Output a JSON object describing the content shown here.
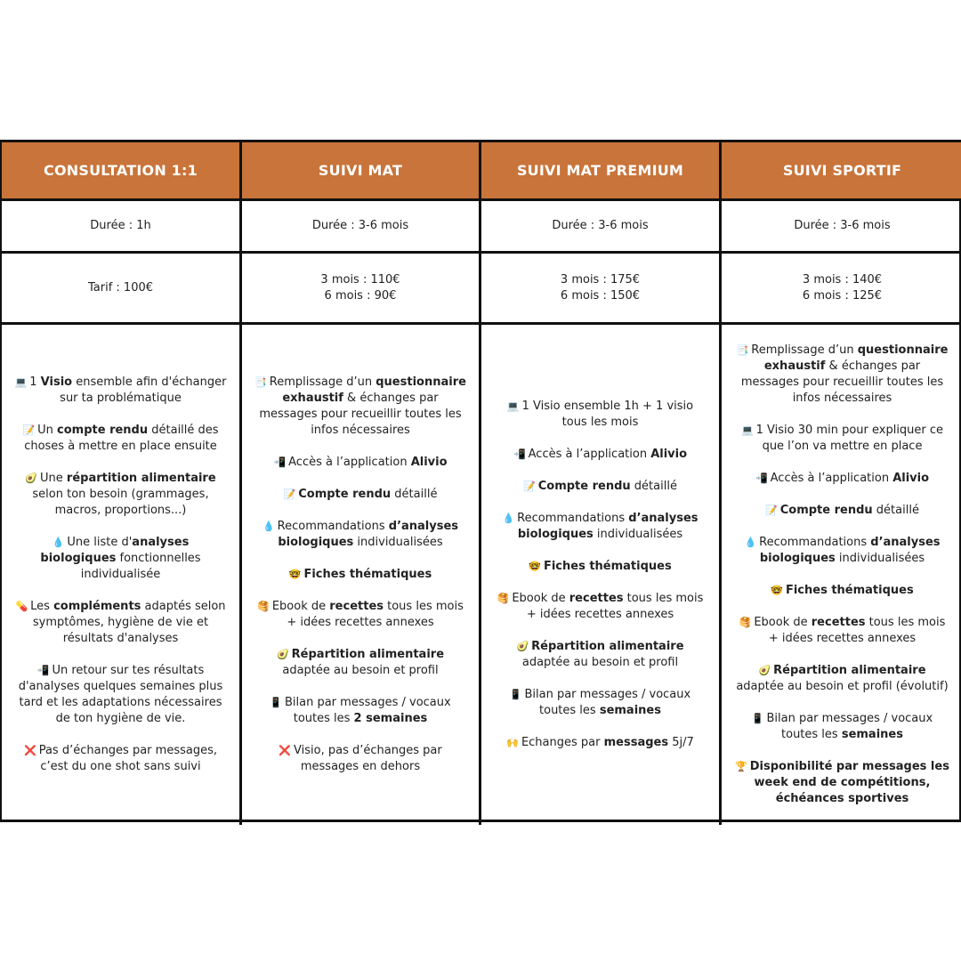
{
  "headers": [
    "CONSULTATION 1:1",
    "SUIVI MAT",
    "SUIVI MAT PREMIUM",
    "SUIVI SPORTIF"
  ],
  "durations": [
    "Durée : 1h",
    "Durée : 3-6 mois",
    "Durée : 3-6 mois",
    "Durée : 3-6 mois"
  ],
  "prices": [
    [
      "Tarif : 100€"
    ],
    [
      "3 mois : 110€",
      "6 mois : 90€"
    ],
    [
      "3 mois : 175€",
      "6 mois : 150€"
    ],
    [
      "3 mois : 140€",
      "6 mois : 125€"
    ]
  ],
  "features": [
    [
      {
        "icon": "laptop-icon",
        "glyph": "💻",
        "parts": [
          [
            "1 ",
            false
          ],
          [
            "Visio",
            true
          ],
          [
            " ensemble afin d'échanger sur ta problématique",
            false
          ]
        ]
      },
      {
        "icon": "memo-icon",
        "glyph": "📝",
        "parts": [
          [
            "Un ",
            false
          ],
          [
            "compte rendu",
            true
          ],
          [
            " détaillé des choses à mettre en place ensuite",
            false
          ]
        ]
      },
      {
        "icon": "avocado-icon",
        "glyph": "🥑",
        "parts": [
          [
            "Une ",
            false
          ],
          [
            "répartition alimentaire",
            true
          ],
          [
            " selon ton besoin (grammages, macros, proportions...)",
            false
          ]
        ]
      },
      {
        "icon": "blood-drop-icon",
        "glyph": "💧",
        "parts": [
          [
            "Une liste d'",
            false
          ],
          [
            "analyses biologiques",
            true
          ],
          [
            " fonctionnelles individualisée",
            false
          ]
        ]
      },
      {
        "icon": "pill-icon",
        "glyph": "💊",
        "parts": [
          [
            "Les ",
            false
          ],
          [
            "compléments",
            true
          ],
          [
            " adaptés selon symptômes, hygiène de vie et résultats d'analyses",
            false
          ]
        ]
      },
      {
        "icon": "phone-arrow-icon",
        "glyph": "📲",
        "parts": [
          [
            "Un retour sur tes résultats d'analyses quelques semaines plus tard et les adaptations nécessaires de ton hygiène de vie.",
            false
          ]
        ]
      },
      {
        "icon": "cross-icon",
        "glyph": "❌",
        "parts": [
          [
            "Pas d’échanges par messages, c’est du one shot sans suivi",
            false
          ]
        ]
      }
    ],
    [
      {
        "icon": "document-icon",
        "glyph": "📑",
        "parts": [
          [
            "Remplissage d’un ",
            false
          ],
          [
            "questionnaire exhaustif",
            true
          ],
          [
            " & échanges par messages pour recueillir toutes les infos nécessaires",
            false
          ]
        ]
      },
      {
        "icon": "phone-arrow-icon",
        "glyph": "📲",
        "parts": [
          [
            "Accès à l’application ",
            false
          ],
          [
            "Alivio",
            true
          ]
        ]
      },
      {
        "icon": "memo-icon",
        "glyph": "📝",
        "parts": [
          [
            "Compte rendu",
            true
          ],
          [
            " détaillé",
            false
          ]
        ]
      },
      {
        "icon": "blood-drop-icon",
        "glyph": "💧",
        "parts": [
          [
            "Recommandations ",
            false
          ],
          [
            "d’analyses biologiques",
            true
          ],
          [
            " individualisées",
            false
          ]
        ]
      },
      {
        "icon": "nerd-face-icon",
        "glyph": "🤓",
        "parts": [
          [
            "Fiches thématiques",
            true
          ]
        ]
      },
      {
        "icon": "pancakes-icon",
        "glyph": "🥞",
        "parts": [
          [
            "Ebook de ",
            false
          ],
          [
            "recettes",
            true
          ],
          [
            " tous les mois + idées recettes annexes",
            false
          ]
        ]
      },
      {
        "icon": "avocado-icon",
        "glyph": "🥑",
        "parts": [
          [
            "Répartition alimentaire",
            true
          ],
          [
            " adaptée au besoin et profil",
            false
          ]
        ]
      },
      {
        "icon": "mobile-phone-icon",
        "glyph": "📱",
        "parts": [
          [
            "Bilan par messages / vocaux toutes les ",
            false
          ],
          [
            "2 semaines",
            true
          ]
        ]
      },
      {
        "icon": "cross-icon",
        "glyph": "❌",
        "parts": [
          [
            "Visio, pas d’échanges par messages en dehors",
            false
          ]
        ]
      }
    ],
    [
      {
        "icon": "laptop-icon",
        "glyph": "💻",
        "parts": [
          [
            "1 Visio ensemble 1h + 1 visio tous les mois",
            false
          ]
        ]
      },
      {
        "icon": "phone-arrow-icon",
        "glyph": "📲",
        "parts": [
          [
            "Accès à l’application ",
            false
          ],
          [
            "Alivio",
            true
          ]
        ]
      },
      {
        "icon": "memo-icon",
        "glyph": "📝",
        "parts": [
          [
            "Compte rendu",
            true
          ],
          [
            " détaillé",
            false
          ]
        ]
      },
      {
        "icon": "blood-drop-icon",
        "glyph": "💧",
        "parts": [
          [
            "Recommandations ",
            false
          ],
          [
            "d’analyses biologiques",
            true
          ],
          [
            " individualisées",
            false
          ]
        ]
      },
      {
        "icon": "nerd-face-icon",
        "glyph": "🤓",
        "parts": [
          [
            "Fiches thématiques",
            true
          ]
        ]
      },
      {
        "icon": "pancakes-icon",
        "glyph": "🥞",
        "parts": [
          [
            "Ebook de ",
            false
          ],
          [
            "recettes",
            true
          ],
          [
            " tous les mois + idées recettes annexes",
            false
          ]
        ]
      },
      {
        "icon": "avocado-icon",
        "glyph": "🥑",
        "parts": [
          [
            "Répartition alimentaire",
            true
          ],
          [
            " adaptée au besoin et profil",
            false
          ]
        ]
      },
      {
        "icon": "mobile-phone-icon",
        "glyph": "📱",
        "parts": [
          [
            "Bilan par messages / vocaux toutes les  ",
            false
          ],
          [
            "semaines",
            true
          ]
        ]
      },
      {
        "icon": "raised-hands-icon",
        "glyph": "🙌",
        "parts": [
          [
            "Echanges par ",
            false
          ],
          [
            "messages",
            true
          ],
          [
            " 5j/7",
            false
          ]
        ]
      }
    ],
    [
      {
        "icon": "document-icon",
        "glyph": "📑",
        "parts": [
          [
            "Remplissage d’un ",
            false
          ],
          [
            "questionnaire exhaustif",
            true
          ],
          [
            " & échanges par messages pour recueillir toutes les infos nécessaires",
            false
          ]
        ]
      },
      {
        "icon": "laptop-icon",
        "glyph": "💻",
        "parts": [
          [
            "1 Visio 30 min pour expliquer ce que l’on va mettre en place",
            false
          ]
        ]
      },
      {
        "icon": "phone-arrow-icon",
        "glyph": "📲",
        "parts": [
          [
            "Accès à l’application ",
            false
          ],
          [
            "Alivio",
            true
          ]
        ]
      },
      {
        "icon": "memo-icon",
        "glyph": "📝",
        "parts": [
          [
            "Compte rendu",
            true
          ],
          [
            " détaillé",
            false
          ]
        ]
      },
      {
        "icon": "blood-drop-icon",
        "glyph": "💧",
        "parts": [
          [
            "Recommandations ",
            false
          ],
          [
            "d’analyses biologiques",
            true
          ],
          [
            " individualisées",
            false
          ]
        ]
      },
      {
        "icon": "nerd-face-icon",
        "glyph": "🤓",
        "parts": [
          [
            "Fiches thématiques",
            true
          ]
        ]
      },
      {
        "icon": "pancakes-icon",
        "glyph": "🥞",
        "parts": [
          [
            "Ebook de ",
            false
          ],
          [
            "recettes",
            true
          ],
          [
            " tous les mois + idées recettes annexes",
            false
          ]
        ]
      },
      {
        "icon": "avocado-icon",
        "glyph": "🥑",
        "parts": [
          [
            "Répartition alimentaire",
            true
          ],
          [
            " adaptée au besoin et profil (évolutif)",
            false
          ]
        ]
      },
      {
        "icon": "mobile-phone-icon",
        "glyph": "📱",
        "parts": [
          [
            "Bilan par messages / vocaux toutes les ",
            false
          ],
          [
            "semaines",
            true
          ]
        ]
      },
      {
        "icon": "trophy-icon",
        "glyph": "🏆",
        "parts": [
          [
            "Disponibilité par messages les week end de compétitions, échéances sportives",
            true
          ]
        ]
      }
    ]
  ],
  "colors": {
    "header_background": "#c9743a",
    "header_text": "#ffffff",
    "border": "#111111",
    "text": "#222222"
  }
}
